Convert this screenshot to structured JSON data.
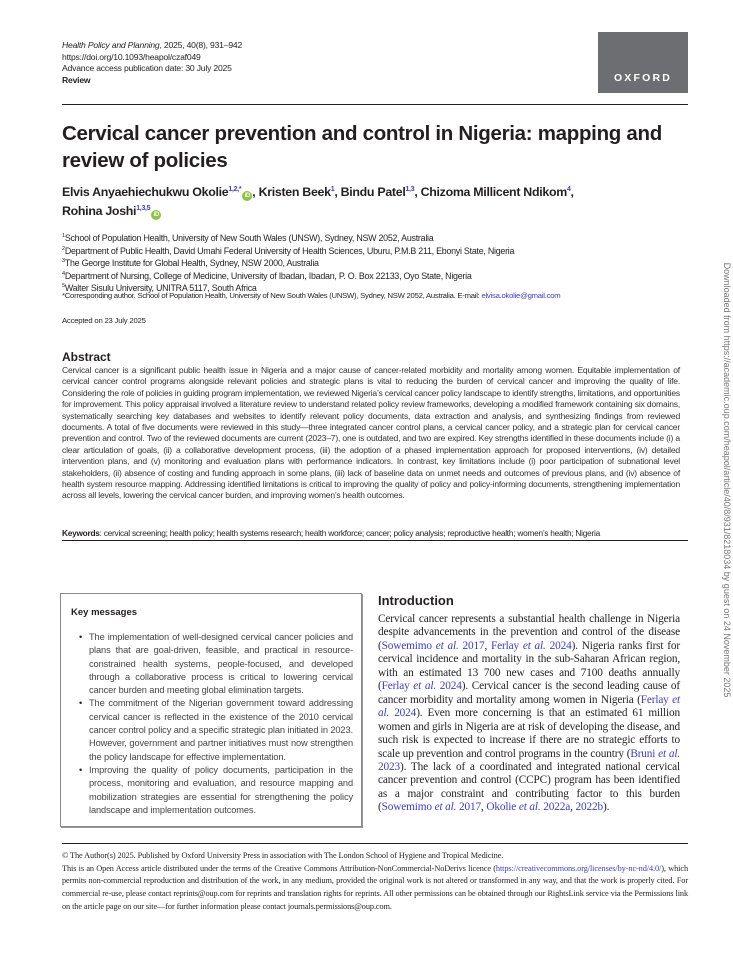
{
  "header": {
    "journal": "Health Policy and Planning",
    "citation": ", 2025, 40(8), 931–942",
    "doi": "https://doi.org/10.1093/heapol/czaf049",
    "advance_access": "Advance access publication date: 30 July 2025",
    "article_type": "Review",
    "publisher_logo": "OXFORD"
  },
  "title": "Cervical cancer prevention and control in Nigeria: mapping and review of policies",
  "authors": [
    {
      "name": "Elvis Anyaehiechukwu Okolie",
      "aff": "1,2,*",
      "orcid": true
    },
    {
      "name": "Kristen Beek",
      "aff": "1",
      "orcid": false
    },
    {
      "name": "Bindu Patel",
      "aff": "1,3",
      "orcid": false
    },
    {
      "name": "Chizoma Millicent Ndikom",
      "aff": "4",
      "orcid": false
    },
    {
      "name": "Rohina Joshi",
      "aff": "1,3,5",
      "orcid": true
    }
  ],
  "orcid_label": "iD",
  "affiliations": [
    {
      "n": "1",
      "text": "School of Population Health, University of New South Wales (UNSW), Sydney, NSW 2052, Australia"
    },
    {
      "n": "2",
      "text": "Department of Public Health, David Umahi Federal University of Health Sciences, Uburu, P.M.B 211, Ebonyi State, Nigeria"
    },
    {
      "n": "3",
      "text": "The George Institute for Global Health, Sydney, NSW 2000, Australia"
    },
    {
      "n": "4",
      "text": "Department of Nursing, College of Medicine, University of Ibadan, Ibadan, P. O. Box 22133, Oyo State, Nigeria"
    },
    {
      "n": "5",
      "text": "Walter Sisulu University, UNITRA 5117, South Africa"
    }
  ],
  "corresponding": {
    "text": "*Corresponding author. School of Population Health, University of New South Wales (UNSW), Sydney, NSW 2052, Australia. E-mail: ",
    "email": "elvisa.okolie@gmail.com"
  },
  "accepted": "Accepted on 23 July 2025",
  "abstract": {
    "heading": "Abstract",
    "text": "Cervical cancer is a significant public health issue in Nigeria and a major cause of cancer-related morbidity and mortality among women. Equitable implementation of cervical cancer control programs alongside relevant policies and strategic plans is vital to reducing the burden of cervical cancer and improving the quality of life. Considering the role of policies in guiding program implementation, we reviewed Nigeria’s cervical cancer policy landscape to identify strengths, limitations, and opportunities for improvement. This policy appraisal involved a literature review to understand related policy review frameworks, developing a modified framework containing six domains, systematically searching key databases and websites to identify relevant policy documents, data extraction and analysis, and synthesizing findings from reviewed documents. A total of five documents were reviewed in this study—three integrated cancer control plans, a cervical cancer policy, and a strategic plan for cervical cancer prevention and control. Two of the reviewed documents are current (2023–7), one is outdated, and two are expired. Key strengths identified in these documents include (i) a clear articulation of goals, (ii) a collaborative development process, (iii) the adoption of a phased implementation approach for proposed interventions, (iv) detailed intervention plans, and (v) monitoring and evaluation plans with performance indicators. In contrast, key limitations include (i) poor participation of subnational level stakeholders, (ii) absence of costing and funding approach in some plans, (iii) lack of baseline data on unmet needs and outcomes of previous plans, and (iv) absence of health system resource mapping. Addressing identified limitations is critical to improving the quality of policy and policy-informing documents, strengthening implementation across all levels, lowering the cervical cancer burden, and improving women’s health outcomes."
  },
  "keywords": {
    "label": "Keywords",
    "text": ": cervical screening; health policy; health systems research; health workforce; cancer; policy analysis; reproductive health; women’s health; Nigeria"
  },
  "key_messages": {
    "heading": "Key messages",
    "items": [
      "The implementation of well-designed cervical cancer policies and plans that are goal-driven, feasible, and practical in resource-constrained health systems, people-focused, and developed through a collaborative process is critical to lowering cervical cancer burden and meeting global elimination targets.",
      "The commitment of the Nigerian government toward addressing cervical cancer is reflected in the existence of the 2010 cervical cancer control policy and a specific strategic plan initiated in 2023. However, government and partner initiatives must now strengthen the policy landscape for effective implementation.",
      "Improving the quality of policy documents, participation in the process, monitoring and evaluation, and resource mapping and mobilization strategies are essential for strengthening the policy landscape and implementation outcomes."
    ]
  },
  "introduction": {
    "heading": "Introduction",
    "parts": [
      {
        "t": "Cervical cancer represents a substantial health challenge in Nigeria despite advancements in the prevention and control of the disease ("
      },
      {
        "ref": "Sowemimo et al. 2017"
      },
      {
        "t": ", "
      },
      {
        "ref": "Ferlay et al. 2024"
      },
      {
        "t": "). Nigeria ranks first for cervical incidence and mortality in the sub-Saharan African region, with an estimated 13 700 new cases and 7100 deaths annually ("
      },
      {
        "ref": "Ferlay et al. 2024"
      },
      {
        "t": "). Cervical cancer is the second leading cause of cancer morbidity and mortality among women in Nigeria ("
      },
      {
        "ref": "Ferlay et al. 2024"
      },
      {
        "t": "). Even more concerning is that an estimated 61 million women and girls in Nigeria are at risk of developing the disease, and such risk is expected to increase if there are no strategic efforts to scale up prevention and control programs in the country ("
      },
      {
        "ref": "Bruni et al. 2023"
      },
      {
        "t": "). The lack of a coordinated and integrated national cervical cancer prevention and control (CCPC) program has been identified as a major constraint and contributing factor to this burden ("
      },
      {
        "ref": "Sowemimo et al. 2017"
      },
      {
        "t": ", "
      },
      {
        "ref": "Okolie et al. 2022a"
      },
      {
        "t": ", "
      },
      {
        "ref": "2022b"
      },
      {
        "t": ")."
      }
    ]
  },
  "footer": {
    "copyright": "© The Author(s) 2025. Published by Oxford University Press in association with The London School of Hygiene and Tropical Medicine.",
    "license_pre": "This is an Open Access article distributed under the terms of the Creative Commons Attribution-NonCommercial-NoDerivs licence (",
    "license_url": "https://creativecommons.org/licenses/by-nc-nd/4.0/",
    "license_post": "), which permits non-commercial reproduction and distribution of the work, in any medium, provided the original work is not altered or transformed in any way, and that the work is properly cited. For commercial re-use, please contact reprints@oup.com for reprints and translation rights for reprints. All other permissions can be obtained through our RightsLink service via the Permissions link on the article page on our site—for further information please contact journals.permissions@oup.com."
  },
  "side_note": "Downloaded from https://academic.oup.com/heapol/article/40/8/931/8218034 by guest on 24 November 2025",
  "colors": {
    "link": "#3b3bd6",
    "orcid": "#8cc63f",
    "logo_bg": "#6d6e71"
  }
}
